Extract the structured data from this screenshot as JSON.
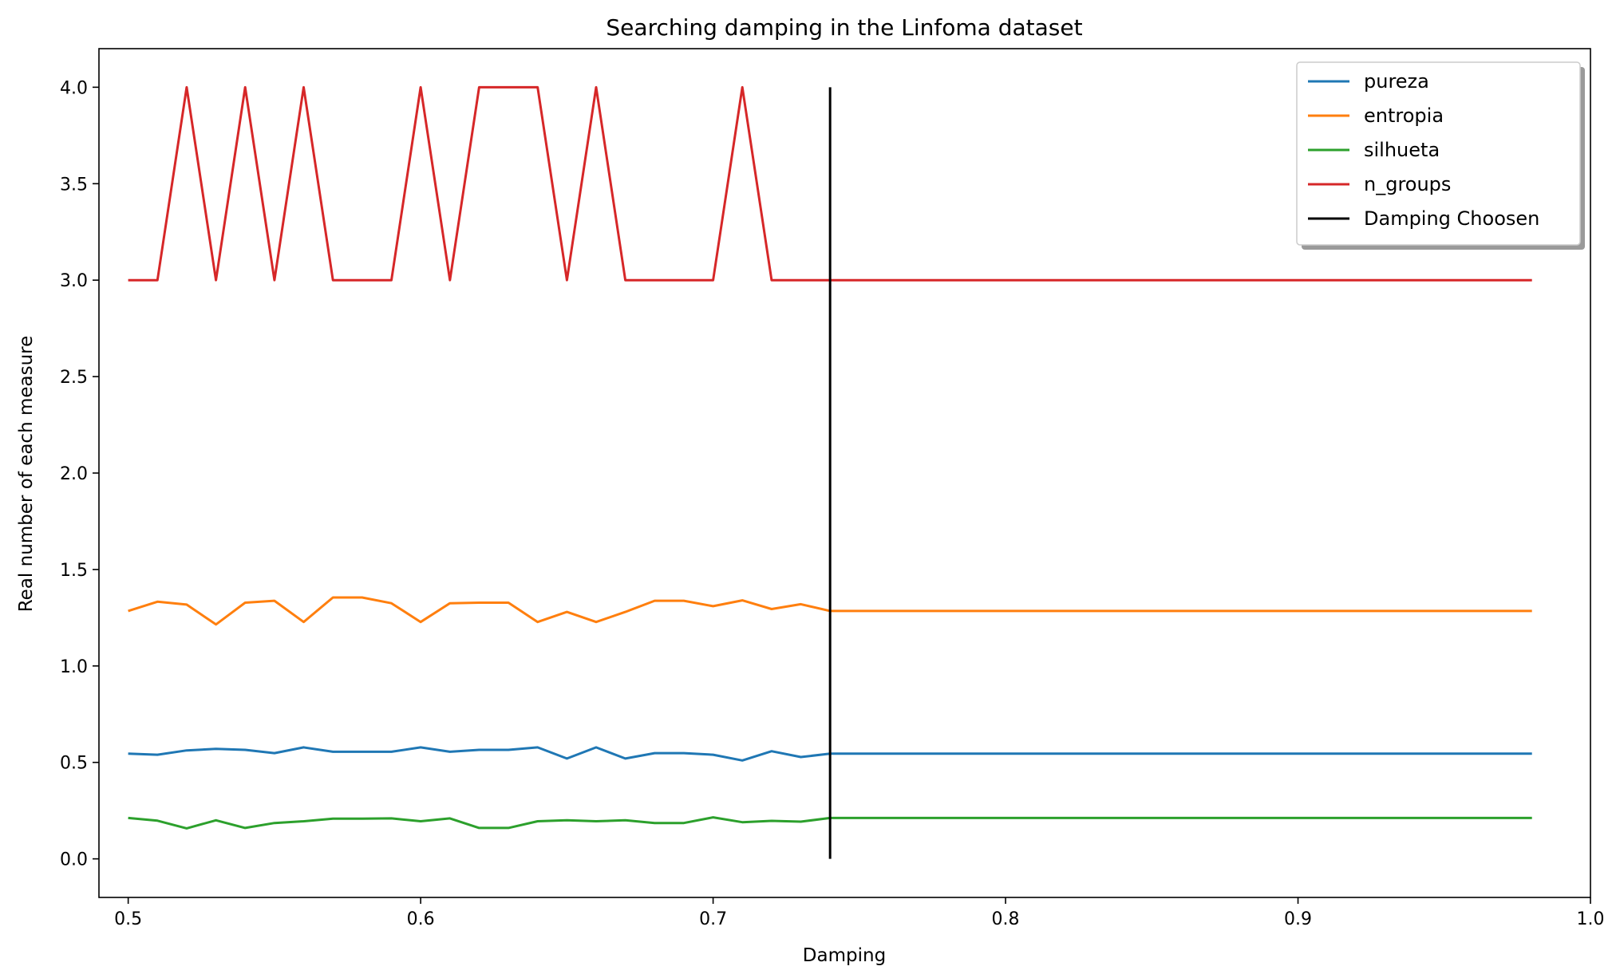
{
  "chart_data": {
    "type": "line",
    "title": "Searching damping in the Linfoma dataset",
    "xlabel": "Damping",
    "ylabel": "Real number of each measure",
    "xlim": [
      0.49,
      1.0
    ],
    "ylim": [
      -0.2,
      4.2
    ],
    "xticks": [
      0.5,
      0.6,
      0.7,
      0.8,
      0.9,
      1.0
    ],
    "xtick_labels": [
      "0.5",
      "0.6",
      "0.7",
      "0.8",
      "0.9",
      "1.0"
    ],
    "yticks": [
      0.0,
      0.5,
      1.0,
      1.5,
      2.0,
      2.5,
      3.0,
      3.5,
      4.0
    ],
    "ytick_labels": [
      "0.0",
      "0.5",
      "1.0",
      "1.5",
      "2.0",
      "2.5",
      "3.0",
      "3.5",
      "4.0"
    ],
    "grid": false,
    "legend_position": "top-right",
    "x": [
      0.5,
      0.51,
      0.52,
      0.53,
      0.54,
      0.55,
      0.56,
      0.57,
      0.58,
      0.59,
      0.6,
      0.61,
      0.62,
      0.63,
      0.64,
      0.65,
      0.66,
      0.67,
      0.68,
      0.69,
      0.7,
      0.71,
      0.72,
      0.73,
      0.74,
      0.75,
      0.76,
      0.77,
      0.78,
      0.79,
      0.8,
      0.81,
      0.82,
      0.83,
      0.84,
      0.85,
      0.86,
      0.87,
      0.88,
      0.89,
      0.9,
      0.91,
      0.92,
      0.93,
      0.94,
      0.95,
      0.96,
      0.97,
      0.98
    ],
    "series": [
      {
        "name": "pureza",
        "color": "#1f77b4",
        "values": [
          0.545,
          0.54,
          0.562,
          0.57,
          0.565,
          0.548,
          0.578,
          0.555,
          0.555,
          0.555,
          0.578,
          0.555,
          0.565,
          0.565,
          0.578,
          0.52,
          0.578,
          0.52,
          0.548,
          0.548,
          0.54,
          0.51,
          0.558,
          0.528,
          0.545,
          0.545,
          0.545,
          0.545,
          0.545,
          0.545,
          0.545,
          0.545,
          0.545,
          0.545,
          0.545,
          0.545,
          0.545,
          0.545,
          0.545,
          0.545,
          0.545,
          0.545,
          0.545,
          0.545,
          0.545,
          0.545,
          0.545,
          0.545,
          0.545
        ]
      },
      {
        "name": "entropia",
        "color": "#ff7f0e",
        "values": [
          1.285,
          1.333,
          1.318,
          1.215,
          1.328,
          1.338,
          1.228,
          1.355,
          1.355,
          1.325,
          1.228,
          1.325,
          1.328,
          1.328,
          1.228,
          1.28,
          1.228,
          1.28,
          1.338,
          1.338,
          1.31,
          1.34,
          1.295,
          1.32,
          1.285,
          1.285,
          1.285,
          1.285,
          1.285,
          1.285,
          1.285,
          1.285,
          1.285,
          1.285,
          1.285,
          1.285,
          1.285,
          1.285,
          1.285,
          1.285,
          1.285,
          1.285,
          1.285,
          1.285,
          1.285,
          1.285,
          1.285,
          1.285,
          1.285
        ]
      },
      {
        "name": "silhueta",
        "color": "#2ca02c",
        "values": [
          0.212,
          0.198,
          0.158,
          0.2,
          0.16,
          0.186,
          0.195,
          0.208,
          0.208,
          0.21,
          0.195,
          0.21,
          0.16,
          0.16,
          0.195,
          0.2,
          0.195,
          0.2,
          0.186,
          0.186,
          0.215,
          0.19,
          0.197,
          0.193,
          0.212,
          0.212,
          0.212,
          0.212,
          0.212,
          0.212,
          0.212,
          0.212,
          0.212,
          0.212,
          0.212,
          0.212,
          0.212,
          0.212,
          0.212,
          0.212,
          0.212,
          0.212,
          0.212,
          0.212,
          0.212,
          0.212,
          0.212,
          0.212,
          0.212
        ]
      },
      {
        "name": "n_groups",
        "color": "#d62728",
        "values": [
          3,
          3,
          4,
          3,
          4,
          3,
          4,
          3,
          3,
          3,
          4,
          3,
          4,
          4,
          4,
          3,
          4,
          3,
          3,
          3,
          3,
          4,
          3,
          3,
          3,
          3,
          3,
          3,
          3,
          3,
          3,
          3,
          3,
          3,
          3,
          3,
          3,
          3,
          3,
          3,
          3,
          3,
          3,
          3,
          3,
          3,
          3,
          3,
          3
        ]
      }
    ],
    "vline": {
      "name": "Damping Choosen",
      "color": "#000000",
      "x": 0.74,
      "y": [
        0.0,
        4.0
      ]
    }
  }
}
